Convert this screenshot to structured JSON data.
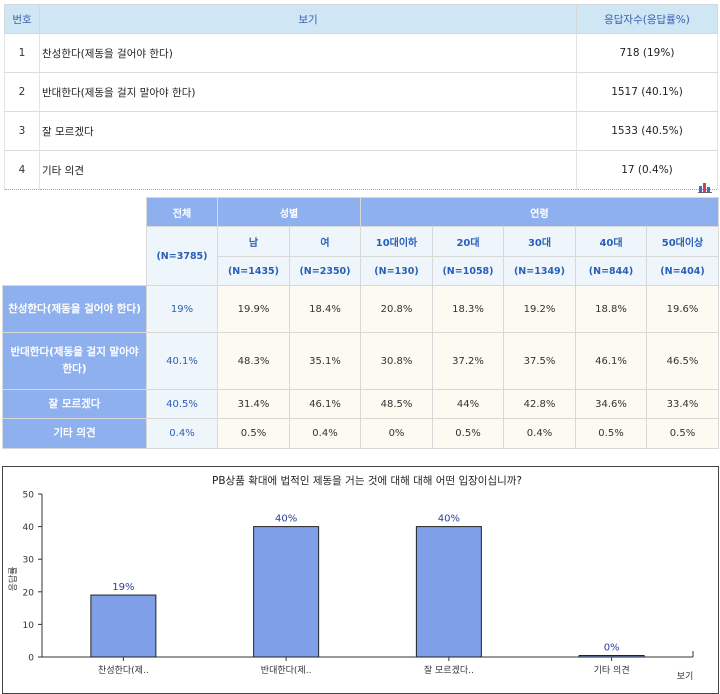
{
  "table1": {
    "headers": {
      "no": "번호",
      "option": "보기",
      "count": "응답자수(응답률%)"
    },
    "rows": [
      {
        "no": "1",
        "label": "찬성한다(제동을 걸어야 한다)",
        "count": "718 (19%)"
      },
      {
        "no": "2",
        "label": "반대한다(제동을 걸지 말아야 한다)",
        "count": "1517 (40.1%)"
      },
      {
        "no": "3",
        "label": "잘 모르겠다",
        "count": "1533 (40.5%)"
      },
      {
        "no": "4",
        "label": "기타 의견",
        "count": "17 (0.4%)"
      }
    ]
  },
  "table2": {
    "header_total": "전체",
    "header_gender": "성별",
    "header_age": "연령",
    "total_n": "(N=3785)",
    "sub_headers": [
      "남",
      "여",
      "10대이하",
      "20대",
      "30대",
      "40대",
      "50대이상"
    ],
    "sub_n": [
      "(N=1435)",
      "(N=2350)",
      "(N=130)",
      "(N=1058)",
      "(N=1349)",
      "(N=844)",
      "(N=404)"
    ],
    "rows": [
      {
        "label": "찬성한다(제동을 걸어야 한다)",
        "total": "19%",
        "values": [
          "19.9%",
          "18.4%",
          "20.8%",
          "18.3%",
          "19.2%",
          "18.8%",
          "19.6%"
        ]
      },
      {
        "label": "반대한다(제동을 걸지 말아야 한다)",
        "total": "40.1%",
        "values": [
          "48.3%",
          "35.1%",
          "30.8%",
          "37.2%",
          "37.5%",
          "46.1%",
          "46.5%"
        ]
      },
      {
        "label": "잘 모르겠다",
        "total": "40.5%",
        "values": [
          "31.4%",
          "46.1%",
          "48.5%",
          "44%",
          "42.8%",
          "34.6%",
          "33.4%"
        ]
      },
      {
        "label": "기타 의견",
        "total": "0.4%",
        "values": [
          "0.5%",
          "0.4%",
          "0%",
          "0.5%",
          "0.4%",
          "0.5%",
          "0.5%"
        ]
      }
    ]
  },
  "chart_data": {
    "type": "bar",
    "title": "PB상품 확대에 법적인 제동을 거는 것에 대해 대해 어떤 입장이십니까?",
    "ylabel": "응답률",
    "xlabel": "보기",
    "categories": [
      "찬성한다(제..",
      "반대한다(제..",
      "잘 모르겠다..",
      "기타 의견"
    ],
    "values": [
      19,
      40,
      40,
      0
    ],
    "data_labels": [
      "19%",
      "40%",
      "40%",
      "0%"
    ],
    "ylim": [
      0,
      50
    ],
    "yticks": [
      0,
      10,
      20,
      30,
      40,
      50
    ],
    "grid": false,
    "colors": {
      "bar": "#7f9fe8",
      "bar_border": "#222222",
      "label": "#2a3f9c"
    }
  }
}
